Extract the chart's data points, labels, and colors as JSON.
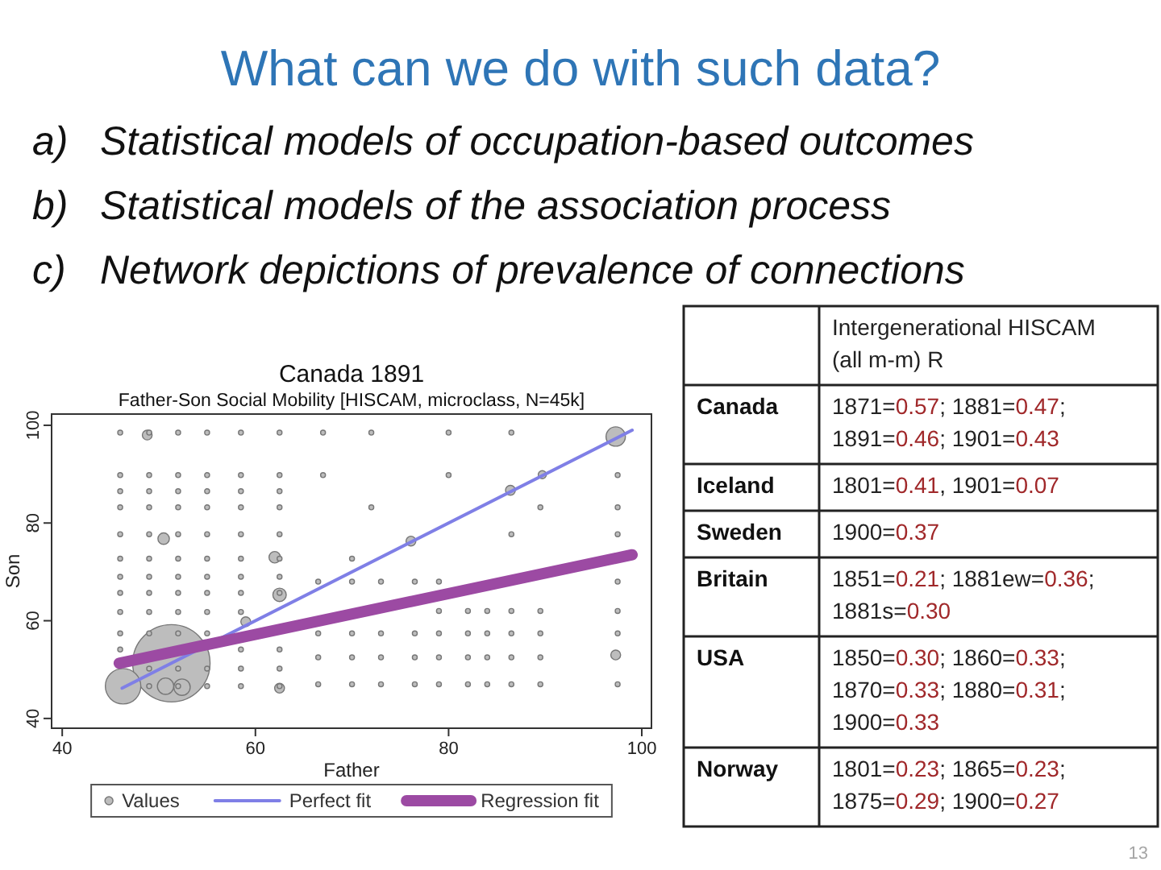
{
  "chart_data": [
    {
      "type": "other",
      "title": "What can we do with such data?",
      "annotations": [
        "a) Statistical models of occupation-based outcomes",
        "b) Statistical models of the association process",
        "c) Network depictions of prevalence of connections"
      ]
    },
    {
      "type": "bubble",
      "title": "Canada 1891",
      "subtitle": "Father-Son Social Mobility [HISCAM, microclass, N=45k]",
      "xlabel": "Father",
      "ylabel": "Son",
      "xlim": [
        38.9,
        101
      ],
      "ylim": [
        38,
        102.3
      ],
      "xticks": [
        40,
        60,
        80,
        100
      ],
      "yticks": [
        40,
        60,
        80,
        100
      ],
      "legend": "bottom",
      "series": [
        {
          "name": "Values",
          "type": "bubble",
          "color": "#bdbdbd",
          "x": [
            51.3,
            46.3,
            50.7,
            52.4,
            97.3,
            62.5,
            50.5,
            62,
            62.5,
            48.8,
            59,
            76.1,
            86.4,
            97.3,
            89.7,
            46,
            46,
            46,
            46,
            46,
            46,
            46,
            46,
            46,
            46,
            46,
            49,
            49,
            49,
            49,
            49,
            49,
            49,
            49,
            49,
            49,
            49,
            49,
            52,
            52,
            52,
            52,
            52,
            52,
            52,
            52,
            52,
            52,
            52,
            52,
            55,
            55,
            55,
            55,
            55,
            55,
            55,
            55,
            55,
            55,
            55,
            55,
            58.5,
            58.5,
            58.5,
            58.5,
            58.5,
            58.5,
            58.5,
            58.5,
            58.5,
            58.5,
            58.5,
            58.5,
            62.5,
            62.5,
            62.5,
            62.5,
            62.5,
            62.5,
            62.5,
            62.5,
            62.5,
            62.5,
            62.5,
            66.5,
            66.5,
            66.5,
            66.5,
            70,
            70,
            70,
            70,
            73,
            73,
            73,
            73,
            76.5,
            76.5,
            76.5,
            76.5,
            79,
            79,
            79,
            79,
            79,
            82,
            82,
            82,
            82,
            84,
            84,
            84,
            84,
            86.5,
            86.5,
            86.5,
            86.5,
            89.5,
            89.5,
            89.5,
            89.5,
            97.5,
            97.5,
            97.5,
            97.5,
            67,
            72,
            80,
            86.5,
            67,
            80,
            72,
            89.5,
            97.5,
            97.5,
            97.5,
            70,
            86.5
          ],
          "values": [
            51.3,
            46.6,
            46.6,
            46.4,
            97.7,
            65.3,
            76.8,
            73,
            46.2,
            98,
            59.8,
            76.3,
            86.7,
            53,
            89.9,
            98.5,
            89.8,
            86.5,
            83.2,
            77.7,
            72.7,
            69,
            65.7,
            61.8,
            57.4,
            54.1,
            98.5,
            89.8,
            86.5,
            83.2,
            77.7,
            72.7,
            69,
            65.7,
            61.8,
            57.4,
            50.2,
            46.6,
            98.5,
            89.8,
            86.5,
            83.2,
            77.7,
            72.7,
            69,
            65.7,
            61.8,
            57.4,
            50.2,
            46.6,
            98.5,
            89.8,
            86.5,
            83.2,
            77.7,
            72.7,
            69,
            65.7,
            61.8,
            57.4,
            50.2,
            46.6,
            98.5,
            89.8,
            86.5,
            83.2,
            77.7,
            72.7,
            69,
            65.7,
            61.8,
            54.1,
            50.2,
            46.6,
            98.5,
            89.8,
            86.5,
            83.2,
            77.7,
            72.7,
            69,
            65.7,
            54.1,
            50.2,
            46.6,
            68,
            57.4,
            52.5,
            47,
            68,
            57.4,
            52.5,
            47,
            68,
            57.4,
            52.5,
            47,
            68,
            57.4,
            52.5,
            47,
            68,
            62,
            57.4,
            52.5,
            47,
            62,
            57.4,
            52.5,
            47,
            62,
            57.4,
            52.5,
            47,
            62,
            57.4,
            52.5,
            47,
            62,
            57.4,
            52.5,
            47,
            68,
            62,
            57.4,
            47,
            98.5,
            98.5,
            98.5,
            98.5,
            89.8,
            89.8,
            83.2,
            83.2,
            89.8,
            83.2,
            77.7,
            72.7,
            77.7
          ],
          "sizes": [
            1,
            0.21,
            0.045,
            0.045,
            0.0625,
            0.03,
            0.022,
            0.022,
            0.016,
            0.016,
            0.016,
            0.016,
            0.016,
            0.016,
            0.011,
            0.004,
            0.004,
            0.004,
            0.004,
            0.004,
            0.004,
            0.004,
            0.004,
            0.004,
            0.004,
            0.004,
            0.004,
            0.004,
            0.004,
            0.004,
            0.004,
            0.004,
            0.004,
            0.004,
            0.004,
            0.004,
            0.004,
            0.004,
            0.004,
            0.004,
            0.004,
            0.004,
            0.004,
            0.004,
            0.004,
            0.004,
            0.004,
            0.004,
            0.004,
            0.004,
            0.004,
            0.004,
            0.004,
            0.004,
            0.004,
            0.004,
            0.004,
            0.004,
            0.004,
            0.004,
            0.004,
            0.004,
            0.004,
            0.004,
            0.004,
            0.004,
            0.004,
            0.004,
            0.004,
            0.004,
            0.004,
            0.004,
            0.004,
            0.004,
            0.004,
            0.004,
            0.004,
            0.004,
            0.004,
            0.004,
            0.004,
            0.004,
            0.004,
            0.004,
            0.004,
            0.004,
            0.004,
            0.004,
            0.004,
            0.004,
            0.004,
            0.004,
            0.004,
            0.004,
            0.004,
            0.004,
            0.004,
            0.004,
            0.004,
            0.004,
            0.004,
            0.004,
            0.004,
            0.004,
            0.004,
            0.004,
            0.004,
            0.004,
            0.004,
            0.004,
            0.004,
            0.004,
            0.004,
            0.004,
            0.004,
            0.004,
            0.004,
            0.004,
            0.004,
            0.004,
            0.004,
            0.004,
            0.004,
            0.004,
            0.004,
            0.004,
            0.004,
            0.004,
            0.004,
            0.004,
            0.004,
            0.004,
            0.004,
            0.004,
            0.004,
            0.004,
            0.004,
            0.004,
            0.004
          ]
        },
        {
          "name": "Perfect fit",
          "type": "line",
          "color": "#7f7fe6",
          "x": [
            46.2,
            99
          ],
          "values": [
            46.2,
            99
          ]
        },
        {
          "name": "Regression fit",
          "type": "line",
          "color": "#9c4aa3",
          "x": [
            45.9,
            99
          ],
          "values": [
            51.3,
            73.5
          ]
        }
      ]
    },
    {
      "type": "other",
      "title": "Intergenerational HISCAM (all m-m) R",
      "categories": [
        "Canada",
        "Iceland",
        "Sweden",
        "Britain",
        "USA",
        "Norway"
      ],
      "annotations": [
        "1871=0.57; 1881=0.47; 1891=0.46; 1901=0.43",
        "1801=0.41, 1901=0.07",
        "1900=0.37",
        "1851=0.21; 1881ew=0.36; 1881s=0.30",
        "1850=0.30; 1860=0.33; 1870=0.33; 1880=0.31; 1900=0.33",
        "1801=0.23; 1865=0.23; 1875=0.29; 1900=0.27",
        "13"
      ]
    }
  ]
}
